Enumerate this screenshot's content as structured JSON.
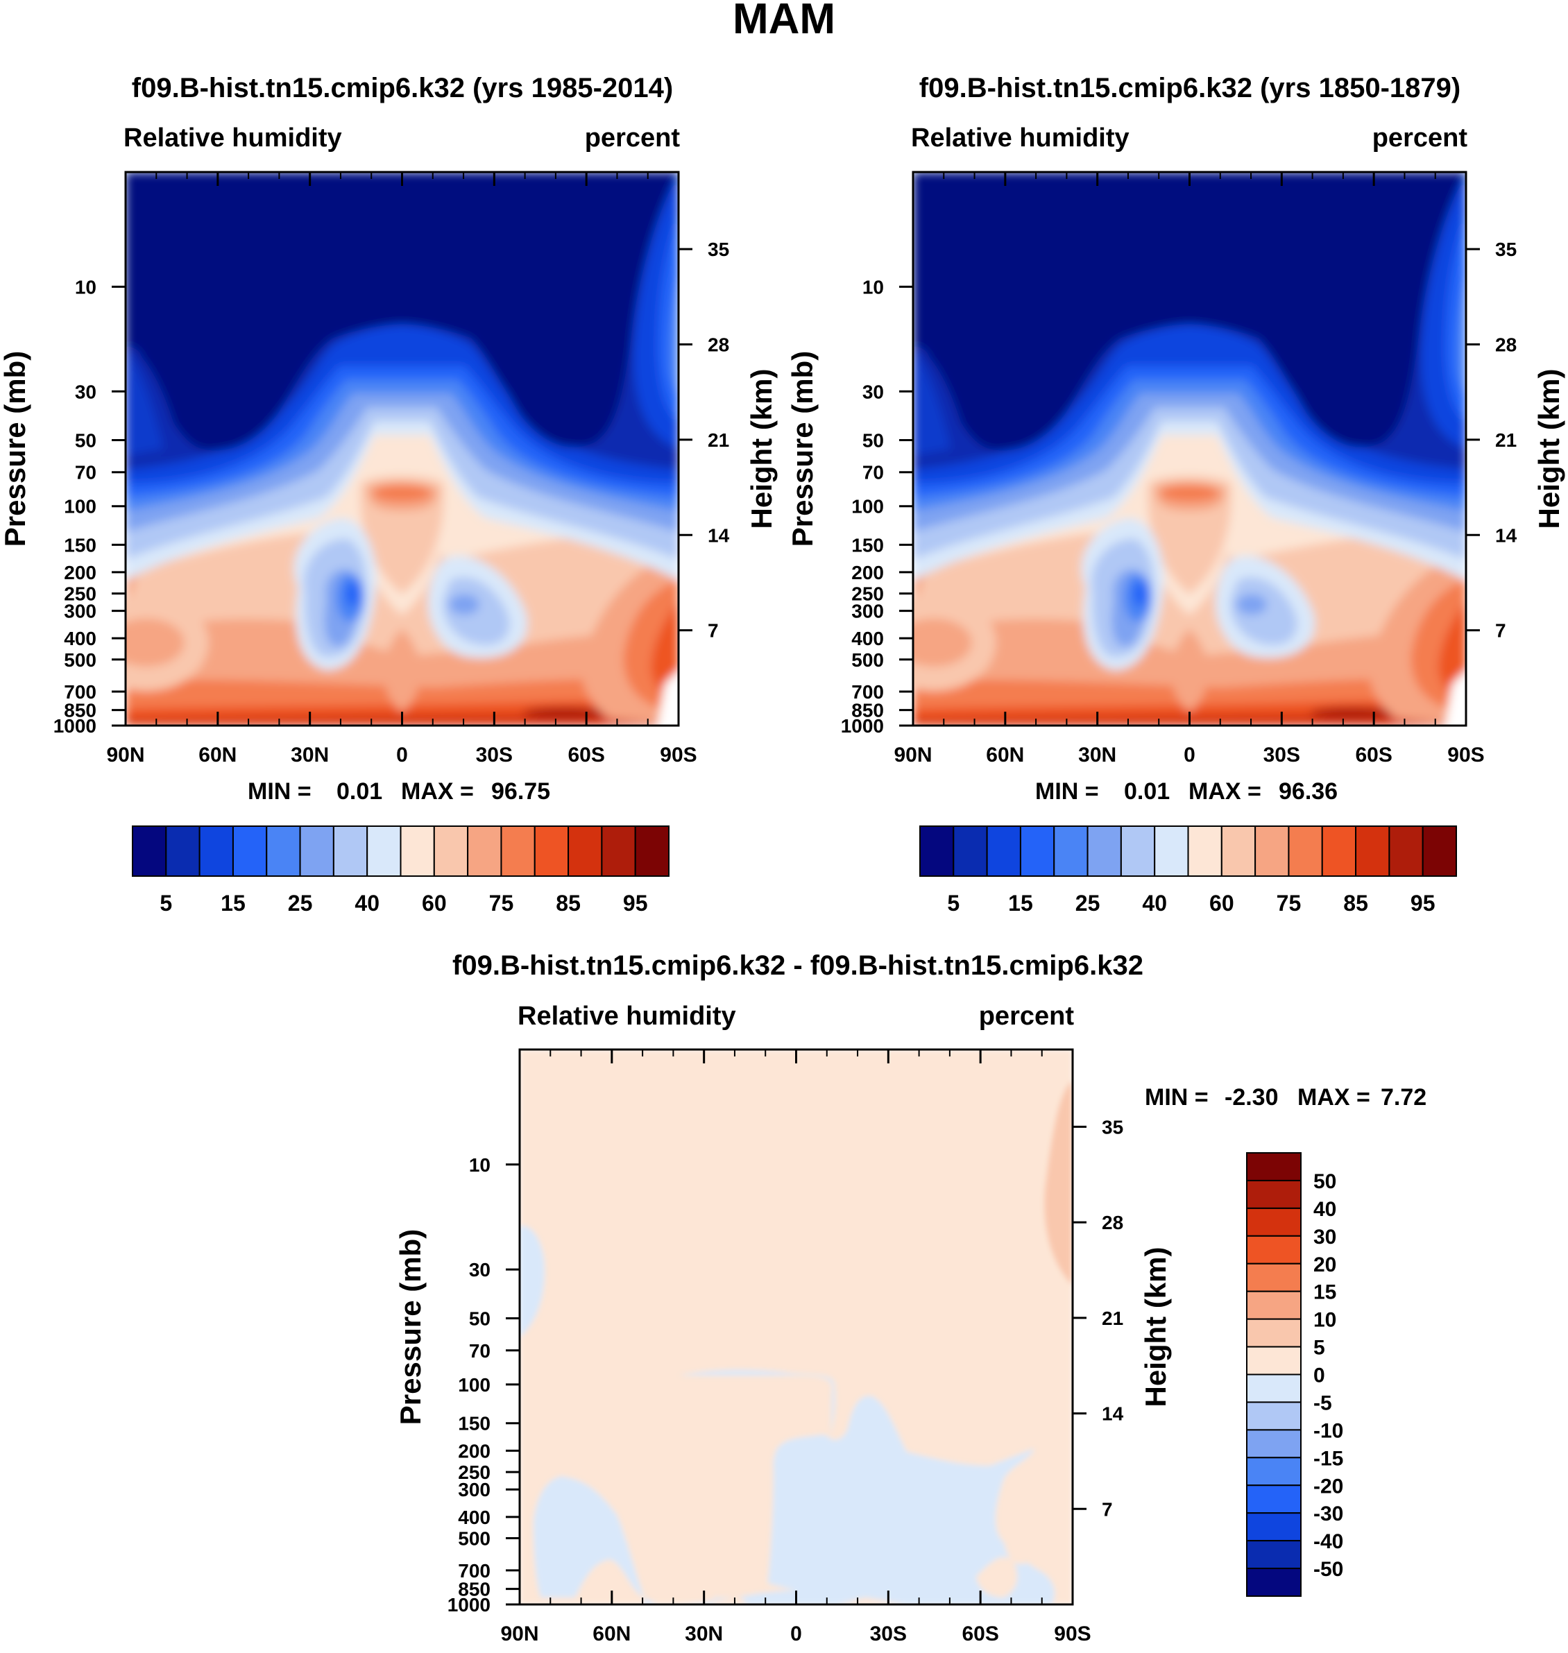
{
  "figure_title": "MAM",
  "chart_data": [
    {
      "type": "contour",
      "title": "f09.B-hist.tn15.cmip6.k32 (yrs 1985-2014)",
      "left_string": "Relative humidity",
      "right_string": "percent",
      "ylabel": "Pressure (mb)",
      "ylabel_right": "Height (km)",
      "x_ticks": [
        "90N",
        "60N",
        "30N",
        "0",
        "30S",
        "60S",
        "90S"
      ],
      "pressure_ticks": [
        "10",
        "30",
        "50",
        "70",
        "100",
        "150",
        "200",
        "250",
        "300",
        "400",
        "500",
        "700",
        "850",
        "1000"
      ],
      "height_ticks": [
        "35",
        "28",
        "21",
        "14",
        "7"
      ],
      "stats": {
        "min_label": "MIN =",
        "min": "0.01",
        "max_label": "MAX =",
        "max": "96.75"
      },
      "colorbar": {
        "levels": [
          5,
          10,
          15,
          20,
          25,
          30,
          40,
          50,
          60,
          70,
          75,
          80,
          85,
          90,
          95
        ],
        "labels": [
          "5",
          "15",
          "25",
          "40",
          "60",
          "75",
          "85",
          "95"
        ],
        "colors": [
          "#04077f",
          "#0a2cb0",
          "#0f45df",
          "#2463f8",
          "#4a84f5",
          "#7ea3f2",
          "#b0c8f5",
          "#d9e8fa",
          "#fde6d6",
          "#f9c7ad",
          "#f6a583",
          "#f47d4f",
          "#ee5424",
          "#d4320e",
          "#ae1d0b",
          "#7c0404"
        ]
      }
    },
    {
      "type": "contour",
      "title": "f09.B-hist.tn15.cmip6.k32 (yrs 1850-1879)",
      "left_string": "Relative humidity",
      "right_string": "percent",
      "ylabel": "Pressure (mb)",
      "ylabel_right": "Height (km)",
      "x_ticks": [
        "90N",
        "60N",
        "30N",
        "0",
        "30S",
        "60S",
        "90S"
      ],
      "pressure_ticks": [
        "10",
        "30",
        "50",
        "70",
        "100",
        "150",
        "200",
        "250",
        "300",
        "400",
        "500",
        "700",
        "850",
        "1000"
      ],
      "height_ticks": [
        "35",
        "28",
        "21",
        "14",
        "7"
      ],
      "stats": {
        "min_label": "MIN =",
        "min": "0.01",
        "max_label": "MAX =",
        "max": "96.36"
      },
      "colorbar": {
        "levels": [
          5,
          10,
          15,
          20,
          25,
          30,
          40,
          50,
          60,
          70,
          75,
          80,
          85,
          90,
          95
        ],
        "labels": [
          "5",
          "15",
          "25",
          "40",
          "60",
          "75",
          "85",
          "95"
        ],
        "colors": [
          "#04077f",
          "#0a2cb0",
          "#0f45df",
          "#2463f8",
          "#4a84f5",
          "#7ea3f2",
          "#b0c8f5",
          "#d9e8fa",
          "#fde6d6",
          "#f9c7ad",
          "#f6a583",
          "#f47d4f",
          "#ee5424",
          "#d4320e",
          "#ae1d0b",
          "#7c0404"
        ]
      }
    },
    {
      "type": "contour",
      "title": "f09.B-hist.tn15.cmip6.k32 - f09.B-hist.tn15.cmip6.k32",
      "left_string": "Relative humidity",
      "right_string": "percent",
      "ylabel": "Pressure (mb)",
      "ylabel_right": "Height (km)",
      "x_ticks": [
        "90N",
        "60N",
        "30N",
        "0",
        "30S",
        "60S",
        "90S"
      ],
      "pressure_ticks": [
        "10",
        "30",
        "50",
        "70",
        "100",
        "150",
        "200",
        "250",
        "300",
        "400",
        "500",
        "700",
        "850",
        "1000"
      ],
      "height_ticks": [
        "35",
        "28",
        "21",
        "14",
        "7"
      ],
      "stats": {
        "min_label": "MIN =",
        "min": "-2.30",
        "max_label": "MAX =",
        "max": "7.72"
      },
      "colorbar": {
        "labels": [
          "50",
          "40",
          "30",
          "20",
          "15",
          "10",
          "5",
          "0",
          "-5",
          "-10",
          "-15",
          "-20",
          "-30",
          "-40",
          "-50"
        ],
        "colors": [
          "#7c0404",
          "#ae1d0b",
          "#d4320e",
          "#ee5424",
          "#f47d4f",
          "#f6a583",
          "#f9c7ad",
          "#fde6d6",
          "#d9e8fa",
          "#b0c8f5",
          "#7ea3f2",
          "#4a84f5",
          "#2463f8",
          "#0f45df",
          "#0a2cb0",
          "#04077f"
        ]
      }
    }
  ]
}
